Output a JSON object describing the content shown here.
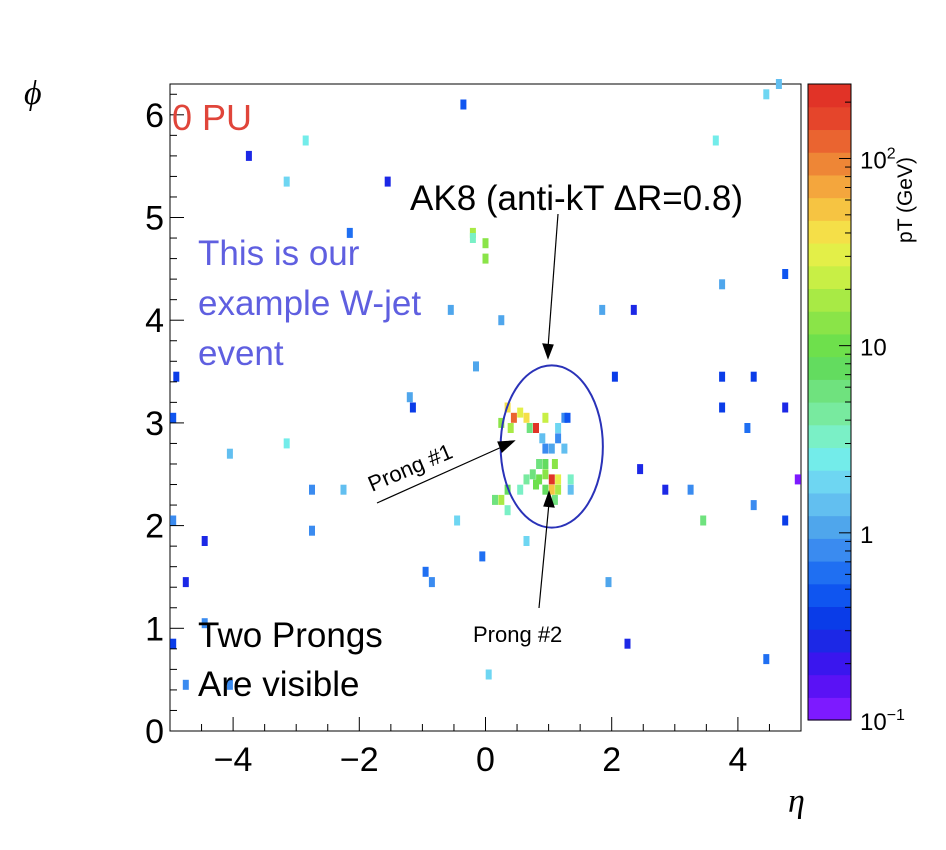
{
  "chart_data": {
    "type": "heatmap",
    "title": "",
    "xlabel": "η",
    "ylabel": "ϕ",
    "xlim": [
      -5,
      5
    ],
    "ylim": [
      0,
      6.3
    ],
    "x_ticks": [
      -4,
      -2,
      0,
      2,
      4
    ],
    "x_tick_labels": [
      "−4",
      "−2",
      "0",
      "2",
      "4"
    ],
    "y_ticks": [
      0,
      1,
      2,
      3,
      4,
      5,
      6
    ],
    "y_tick_labels": [
      "0",
      "1",
      "2",
      "3",
      "4",
      "5",
      "6"
    ],
    "colorbar": {
      "label": "pT (GeV)",
      "scale": "log",
      "range": [
        0.1,
        250
      ],
      "tick_labels": [
        {
          "value": 0.1,
          "base": "10",
          "exp": "−1"
        },
        {
          "value": 1,
          "text": "1"
        },
        {
          "value": 10,
          "text": "10"
        },
        {
          "value": 100,
          "base": "10",
          "exp": "2"
        }
      ],
      "colors": [
        "#7d1aff",
        "#5a12f5",
        "#3a16ee",
        "#1c28e6",
        "#0a3ce8",
        "#0f55f0",
        "#1f6ff2",
        "#3a8bf0",
        "#4fa6ec",
        "#62bff0",
        "#6ed6f2",
        "#73ecea",
        "#7af0c6",
        "#78ea9f",
        "#6fe27e",
        "#63dc5f",
        "#6ee04c",
        "#8ae448",
        "#a8ea45",
        "#c8ef45",
        "#e3ef48",
        "#f5df48",
        "#f6c442",
        "#f4a63d",
        "#ee8636",
        "#ea6430",
        "#e5452b",
        "#e13327"
      ]
    },
    "annotations": [
      {
        "text": "0 PU",
        "color": "#e0453a"
      },
      {
        "text": "AK8 (anti-kT ΔR=0.8)",
        "color": "#000000"
      },
      {
        "text": "This is our example W-jet event",
        "lines": [
          "This is our",
          "example W-jet",
          "event"
        ],
        "color": "#5f5fe0"
      },
      {
        "text": "Prong #1",
        "color": "#000000"
      },
      {
        "text": "Prong #2",
        "color": "#000000"
      },
      {
        "text": "Two Prongs Are visible",
        "lines": [
          "Two Prongs",
          "Are visible"
        ],
        "color": "#000000"
      }
    ],
    "jet_circle": {
      "center": [
        1.05,
        2.77
      ],
      "radius_eta": 0.81,
      "radius_phi": 0.79,
      "color": "#2a32b8"
    },
    "cells": [
      {
        "eta": 0.45,
        "phi": 3.05,
        "pt": 120
      },
      {
        "eta": 0.8,
        "phi": 2.95,
        "pt": 230
      },
      {
        "eta": 1.05,
        "phi": 2.45,
        "pt": 200
      },
      {
        "eta": 0.35,
        "phi": 3.15,
        "pt": 40
      },
      {
        "eta": 0.55,
        "phi": 3.1,
        "pt": 30
      },
      {
        "eta": 0.65,
        "phi": 3.05,
        "pt": 45
      },
      {
        "eta": 0.95,
        "phi": 3.05,
        "pt": 25
      },
      {
        "eta": 0.25,
        "phi": 3.0,
        "pt": 15
      },
      {
        "eta": 0.4,
        "phi": 2.95,
        "pt": 18
      },
      {
        "eta": 0.7,
        "phi": 2.95,
        "pt": 6
      },
      {
        "eta": 1.15,
        "phi": 2.95,
        "pt": 2
      },
      {
        "eta": 1.25,
        "phi": 3.05,
        "pt": 0.8
      },
      {
        "eta": 0.9,
        "phi": 2.85,
        "pt": 1.5
      },
      {
        "eta": 0.95,
        "phi": 2.75,
        "pt": 0.8
      },
      {
        "eta": 1.05,
        "phi": 2.75,
        "pt": 1.2
      },
      {
        "eta": 1.15,
        "phi": 2.85,
        "pt": 0.9
      },
      {
        "eta": 1.25,
        "phi": 2.75,
        "pt": 1.5
      },
      {
        "eta": 0.85,
        "phi": 2.6,
        "pt": 5
      },
      {
        "eta": 0.95,
        "phi": 2.6,
        "pt": 8
      },
      {
        "eta": 1.1,
        "phi": 2.6,
        "pt": 12
      },
      {
        "eta": 0.75,
        "phi": 2.5,
        "pt": 6
      },
      {
        "eta": 0.85,
        "phi": 2.45,
        "pt": 10
      },
      {
        "eta": 0.95,
        "phi": 2.5,
        "pt": 15
      },
      {
        "eta": 1.15,
        "phi": 2.45,
        "pt": 30
      },
      {
        "eta": 1.35,
        "phi": 2.45,
        "pt": 3
      },
      {
        "eta": 1.05,
        "phi": 2.35,
        "pt": 60
      },
      {
        "eta": 1.15,
        "phi": 2.35,
        "pt": 20
      },
      {
        "eta": 0.65,
        "phi": 2.45,
        "pt": 4
      },
      {
        "eta": 0.8,
        "phi": 2.4,
        "pt": 9
      },
      {
        "eta": 0.95,
        "phi": 2.35,
        "pt": 8
      },
      {
        "eta": 0.55,
        "phi": 2.35,
        "pt": 3
      },
      {
        "eta": 1.1,
        "phi": 2.25,
        "pt": 5
      },
      {
        "eta": 0.35,
        "phi": 2.35,
        "pt": 8
      },
      {
        "eta": 0.25,
        "phi": 2.25,
        "pt": 20
      },
      {
        "eta": 0.15,
        "phi": 2.25,
        "pt": 6
      },
      {
        "eta": 0.35,
        "phi": 2.15,
        "pt": 3
      },
      {
        "eta": 1.35,
        "phi": 2.35,
        "pt": 1.5
      },
      {
        "eta": 1.3,
        "phi": 3.05,
        "pt": 0.5
      },
      {
        "eta": 0.65,
        "phi": 1.85,
        "pt": 2
      },
      {
        "eta": -0.2,
        "phi": 4.85,
        "pt": 20
      },
      {
        "eta": 0.0,
        "phi": 4.75,
        "pt": 12
      },
      {
        "eta": 0.0,
        "phi": 4.6,
        "pt": 15
      },
      {
        "eta": -0.35,
        "phi": 6.1,
        "pt": 0.5
      },
      {
        "eta": -3.75,
        "phi": 5.6,
        "pt": 0.3
      },
      {
        "eta": -2.85,
        "phi": 5.75,
        "pt": 2.5
      },
      {
        "eta": -3.15,
        "phi": 5.35,
        "pt": 2
      },
      {
        "eta": -1.55,
        "phi": 5.35,
        "pt": 0.3
      },
      {
        "eta": -2.15,
        "phi": 4.85,
        "pt": 0.7
      },
      {
        "eta": -0.55,
        "phi": 4.1,
        "pt": 1
      },
      {
        "eta": -0.2,
        "phi": 4.8,
        "pt": 3
      },
      {
        "eta": 0.25,
        "phi": 4.0,
        "pt": 1.2
      },
      {
        "eta": -0.15,
        "phi": 3.55,
        "pt": 1.2
      },
      {
        "eta": -4.9,
        "phi": 3.45,
        "pt": 0.4
      },
      {
        "eta": -4.95,
        "phi": 3.05,
        "pt": 0.5
      },
      {
        "eta": -1.15,
        "phi": 3.15,
        "pt": 0.4
      },
      {
        "eta": -1.2,
        "phi": 3.25,
        "pt": 1
      },
      {
        "eta": -3.15,
        "phi": 2.8,
        "pt": 2.5
      },
      {
        "eta": -4.05,
        "phi": 2.7,
        "pt": 1.5
      },
      {
        "eta": -2.75,
        "phi": 2.35,
        "pt": 0.8
      },
      {
        "eta": -2.25,
        "phi": 2.35,
        "pt": 1.5
      },
      {
        "eta": -2.75,
        "phi": 1.95,
        "pt": 0.8
      },
      {
        "eta": -4.95,
        "phi": 2.05,
        "pt": 0.8
      },
      {
        "eta": -4.45,
        "phi": 1.85,
        "pt": 0.3
      },
      {
        "eta": -0.45,
        "phi": 2.05,
        "pt": 2
      },
      {
        "eta": -0.95,
        "phi": 1.55,
        "pt": 0.7
      },
      {
        "eta": -0.85,
        "phi": 1.45,
        "pt": 0.8
      },
      {
        "eta": -0.05,
        "phi": 1.7,
        "pt": 0.7
      },
      {
        "eta": -4.75,
        "phi": 1.45,
        "pt": 0.3
      },
      {
        "eta": -4.95,
        "phi": 0.85,
        "pt": 0.4
      },
      {
        "eta": -4.45,
        "phi": 1.05,
        "pt": 0.9
      },
      {
        "eta": -4.75,
        "phi": 0.45,
        "pt": 0.8
      },
      {
        "eta": -4.05,
        "phi": 0.45,
        "pt": 0.8
      },
      {
        "eta": 0.05,
        "phi": 0.55,
        "pt": 2
      },
      {
        "eta": 1.95,
        "phi": 1.45,
        "pt": 1
      },
      {
        "eta": 2.25,
        "phi": 0.85,
        "pt": 0.3
      },
      {
        "eta": 2.05,
        "phi": 3.45,
        "pt": 0.4
      },
      {
        "eta": 2.35,
        "phi": 4.1,
        "pt": 0.3
      },
      {
        "eta": 1.85,
        "phi": 4.1,
        "pt": 1.2
      },
      {
        "eta": 2.45,
        "phi": 2.55,
        "pt": 0.3
      },
      {
        "eta": 2.85,
        "phi": 2.35,
        "pt": 0.3
      },
      {
        "eta": 3.25,
        "phi": 2.35,
        "pt": 0.8
      },
      {
        "eta": 3.45,
        "phi": 2.05,
        "pt": 6
      },
      {
        "eta": 3.75,
        "phi": 4.35,
        "pt": 1
      },
      {
        "eta": 3.75,
        "phi": 3.45,
        "pt": 0.4
      },
      {
        "eta": 4.25,
        "phi": 3.45,
        "pt": 0.4
      },
      {
        "eta": 3.75,
        "phi": 3.15,
        "pt": 0.4
      },
      {
        "eta": 4.15,
        "phi": 2.95,
        "pt": 0.6
      },
      {
        "eta": 4.25,
        "phi": 2.2,
        "pt": 0.8
      },
      {
        "eta": 4.75,
        "phi": 2.05,
        "pt": 0.4
      },
      {
        "eta": 4.75,
        "phi": 4.45,
        "pt": 0.5
      },
      {
        "eta": 4.95,
        "phi": 2.45,
        "pt": 0.1
      },
      {
        "eta": 4.45,
        "phi": 0.7,
        "pt": 0.7
      },
      {
        "eta": 3.65,
        "phi": 5.75,
        "pt": 2.5
      },
      {
        "eta": 4.45,
        "phi": 6.2,
        "pt": 2
      },
      {
        "eta": 4.65,
        "phi": 6.3,
        "pt": 1.5
      },
      {
        "eta": 4.75,
        "phi": 3.15,
        "pt": 0.3
      }
    ]
  }
}
